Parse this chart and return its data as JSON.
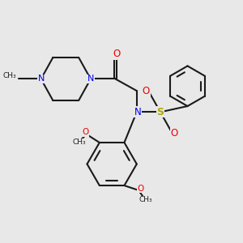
{
  "bg_color": "#e8e8e8",
  "bond_color": "#1a1a1a",
  "N_color": "#0000ee",
  "O_color": "#ee0000",
  "S_color": "#aaaa00",
  "lw": 1.5,
  "dbo": 0.035,
  "xlim": [
    0,
    10
  ],
  "ylim": [
    0,
    10
  ]
}
